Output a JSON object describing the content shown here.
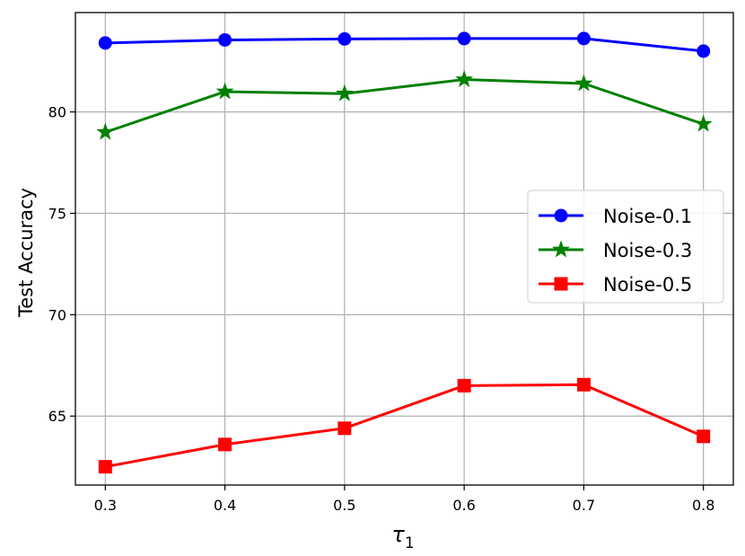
{
  "chart_data": {
    "type": "line",
    "x": [
      0.3,
      0.4,
      0.5,
      0.6,
      0.7,
      0.8
    ],
    "xticks": [
      "0.3",
      "0.4",
      "0.5",
      "0.6",
      "0.7",
      "0.8"
    ],
    "yticks": [
      "65",
      "70",
      "75",
      "80"
    ],
    "ytick_values": [
      65,
      70,
      75,
      80
    ],
    "xlim": [
      0.275,
      0.825
    ],
    "ylim": [
      61.6,
      84.9
    ],
    "xlabel_symbol": "τ",
    "xlabel_subscript": "1",
    "ylabel": "Test Accuracy",
    "grid": true,
    "legend_position": "center-right",
    "series": [
      {
        "name": "Noise-0.1",
        "color": "#0000ff",
        "marker": "circle",
        "values": [
          83.4,
          83.55,
          83.6,
          83.62,
          83.62,
          83.0
        ]
      },
      {
        "name": "Noise-0.3",
        "color": "#008000",
        "marker": "star",
        "values": [
          79.0,
          81.0,
          80.9,
          81.6,
          81.4,
          79.4
        ]
      },
      {
        "name": "Noise-0.5",
        "color": "#ff0000",
        "marker": "square",
        "values": [
          62.5,
          63.6,
          64.4,
          66.5,
          66.55,
          64.0
        ]
      }
    ]
  }
}
